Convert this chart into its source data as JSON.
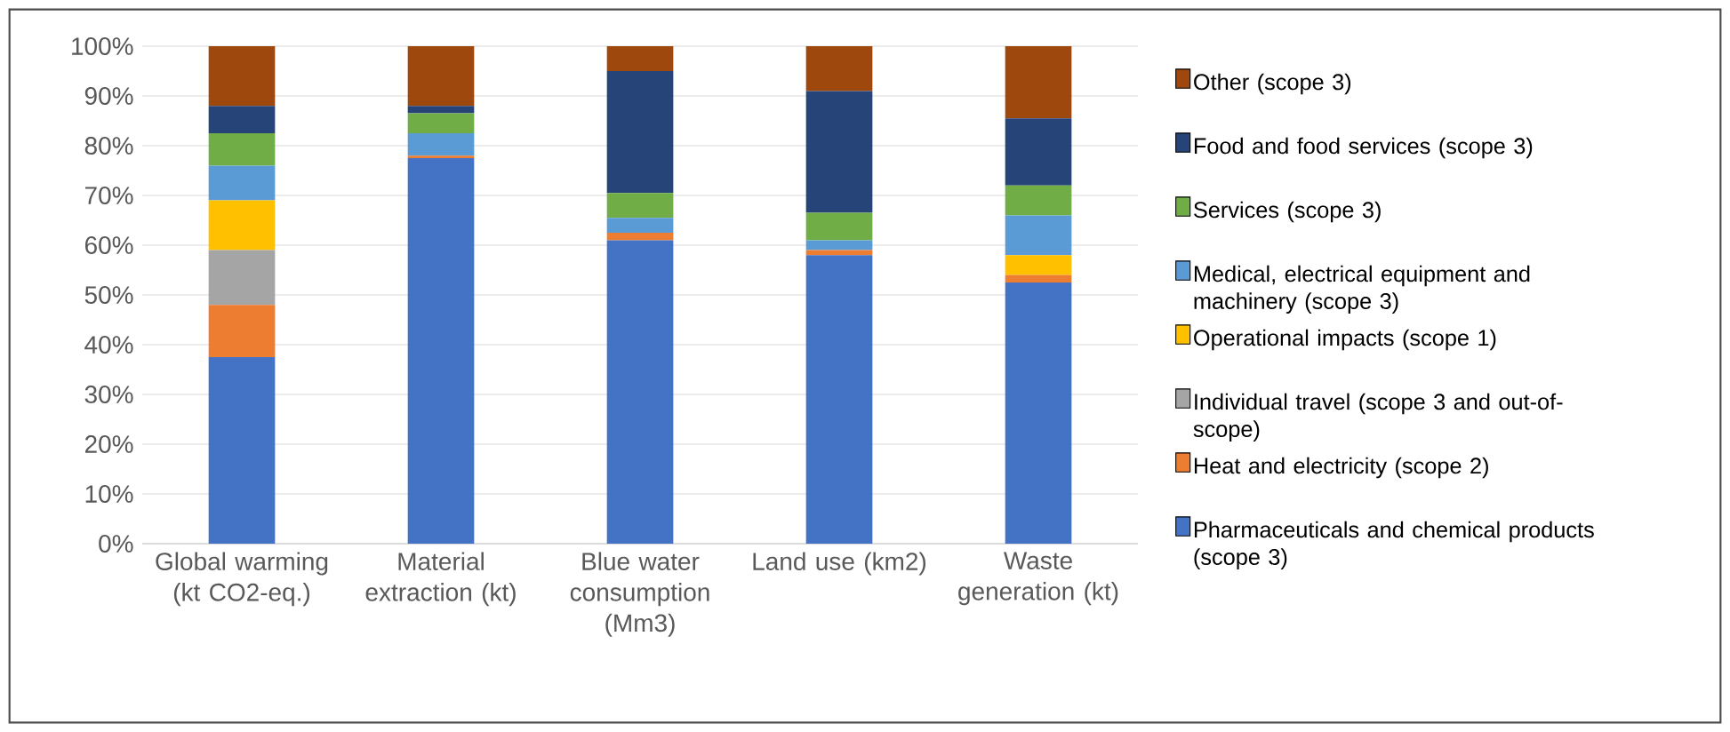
{
  "chart_data": {
    "type": "bar",
    "stacked": true,
    "categories": [
      "Global warming (kt CO2-eq.)",
      "Material extraction (kt)",
      "Blue water consumption (Mm3)",
      "Land use (km2)",
      "Waste generation (kt)"
    ],
    "series": [
      {
        "name": "Pharmaceuticals and chemical products (scope 3)",
        "color": "#4472c4",
        "values": [
          37.5,
          77.5,
          61,
          58,
          52.5
        ]
      },
      {
        "name": "Heat and electricity (scope 2)",
        "color": "#ed7d31",
        "values": [
          10.5,
          0.5,
          1.5,
          1,
          1.5
        ]
      },
      {
        "name": "Individual travel (scope 3 and out-of-scope)",
        "color": "#a5a5a5",
        "values": [
          11,
          0,
          0,
          0,
          0
        ]
      },
      {
        "name": "Operational impacts (scope 1)",
        "color": "#ffc000",
        "values": [
          10,
          0,
          0,
          0,
          4
        ]
      },
      {
        "name": "Medical, electrical equipment and machinery (scope 3)",
        "color": "#5b9bd5",
        "values": [
          7,
          4.5,
          3,
          2,
          8
        ]
      },
      {
        "name": "Services (scope 3)",
        "color": "#70ad47",
        "values": [
          6.5,
          4,
          5,
          5.5,
          6
        ]
      },
      {
        "name": "Food and food services (scope 3)",
        "color": "#264478",
        "values": [
          5.5,
          1.5,
          24.5,
          24.5,
          13.5
        ]
      },
      {
        "name": "Other (scope 3)",
        "color": "#9e480e",
        "values": [
          12,
          12,
          5,
          9,
          14.5
        ]
      }
    ],
    "ylim": [
      0,
      100
    ],
    "yticks": [
      {
        "value": 0,
        "label": "0%"
      },
      {
        "value": 10,
        "label": "10%"
      },
      {
        "value": 20,
        "label": "20%"
      },
      {
        "value": 30,
        "label": "30%"
      },
      {
        "value": 40,
        "label": "40%"
      },
      {
        "value": 50,
        "label": "50%"
      },
      {
        "value": 60,
        "label": "60%"
      },
      {
        "value": 70,
        "label": "70%"
      },
      {
        "value": 80,
        "label": "80%"
      },
      {
        "value": 90,
        "label": "90%"
      },
      {
        "value": 100,
        "label": "100%"
      }
    ],
    "grid": "y",
    "legend": "right"
  }
}
